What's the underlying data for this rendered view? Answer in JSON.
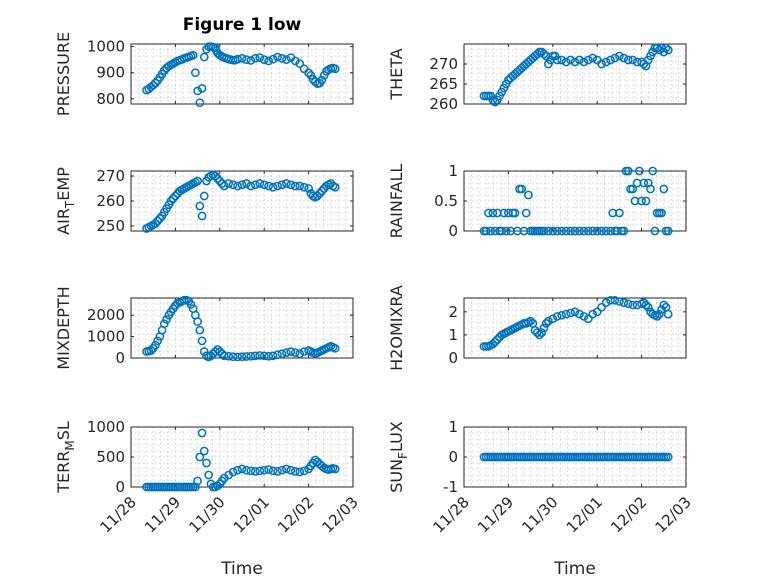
{
  "figure": {
    "title": "Figure 1 low",
    "marker_color": "#0072BD",
    "x_ticks": [
      "11/28",
      "11/29",
      "11/30",
      "12/01",
      "12/02",
      "12/03"
    ],
    "xlabel": "Time"
  },
  "chart_data": [
    {
      "type": "scatter",
      "title": "Figure 1 low",
      "ylabel": "PRESSURE",
      "xlim": [
        0,
        5
      ],
      "ylim": [
        780,
        1010
      ],
      "yticks": [
        800,
        900,
        1000
      ],
      "grid": true,
      "x": [
        0.35,
        0.4,
        0.45,
        0.5,
        0.55,
        0.6,
        0.65,
        0.7,
        0.75,
        0.8,
        0.85,
        0.9,
        0.95,
        1.0,
        1.05,
        1.1,
        1.15,
        1.2,
        1.25,
        1.3,
        1.35,
        1.4,
        1.45,
        1.5,
        1.55,
        1.6,
        1.65,
        1.7,
        1.75,
        1.8,
        1.85,
        1.9,
        1.92,
        1.95,
        2.0,
        2.05,
        2.1,
        2.15,
        2.2,
        2.25,
        2.3,
        2.35,
        2.4,
        2.5,
        2.6,
        2.7,
        2.8,
        2.9,
        3.0,
        3.1,
        3.2,
        3.3,
        3.4,
        3.5,
        3.6,
        3.7,
        3.8,
        3.9,
        4.0,
        4.05,
        4.1,
        4.15,
        4.2,
        4.25,
        4.3,
        4.35,
        4.4,
        4.45,
        4.5,
        4.55,
        4.6
      ],
      "y": [
        833,
        838,
        845,
        852,
        860,
        870,
        882,
        895,
        908,
        918,
        925,
        930,
        935,
        940,
        945,
        948,
        951,
        955,
        958,
        961,
        964,
        967,
        900,
        830,
        785,
        840,
        960,
        990,
        1000,
        1000,
        998,
        995,
        985,
        975,
        968,
        962,
        958,
        955,
        952,
        950,
        948,
        948,
        952,
        955,
        950,
        947,
        955,
        958,
        950,
        945,
        952,
        960,
        955,
        950,
        958,
        945,
        935,
        915,
        900,
        890,
        875,
        865,
        858,
        860,
        872,
        890,
        905,
        912,
        916,
        918,
        915
      ]
    },
    {
      "type": "scatter",
      "ylabel": "THETA",
      "xlim": [
        0,
        5
      ],
      "ylim": [
        260,
        275
      ],
      "yticks": [
        260,
        265,
        270
      ],
      "grid": true,
      "x": [
        0.45,
        0.5,
        0.55,
        0.6,
        0.65,
        0.7,
        0.75,
        0.8,
        0.85,
        0.9,
        0.95,
        1.0,
        1.05,
        1.1,
        1.15,
        1.2,
        1.25,
        1.3,
        1.35,
        1.4,
        1.45,
        1.5,
        1.55,
        1.6,
        1.65,
        1.7,
        1.75,
        1.8,
        1.85,
        1.9,
        1.95,
        2.0,
        2.05,
        2.1,
        2.2,
        2.3,
        2.4,
        2.5,
        2.6,
        2.7,
        2.8,
        2.9,
        3.0,
        3.1,
        3.2,
        3.3,
        3.4,
        3.5,
        3.6,
        3.7,
        3.8,
        3.9,
        4.0,
        4.05,
        4.1,
        4.15,
        4.2,
        4.25,
        4.3,
        4.35,
        4.4,
        4.45,
        4.5,
        4.55,
        4.6
      ],
      "y": [
        262,
        262,
        262,
        262,
        261,
        260.5,
        261,
        262,
        263,
        264,
        265,
        266,
        266.5,
        267,
        267.5,
        268,
        268.5,
        269,
        269.5,
        270,
        270.5,
        271,
        271.5,
        272,
        272.5,
        273,
        273,
        272.5,
        272,
        270,
        271,
        272,
        272,
        271,
        271,
        270.5,
        271,
        270.5,
        271,
        270.5,
        271,
        271.5,
        271,
        270,
        270.5,
        271,
        271.5,
        272,
        271.5,
        271,
        271,
        270.5,
        270.5,
        270,
        269.5,
        271,
        272,
        273,
        274,
        274,
        273.5,
        274,
        273,
        274,
        273.5
      ]
    },
    {
      "type": "scatter",
      "ylabel": "AIR_TEMP",
      "xlim": [
        0,
        5
      ],
      "ylim": [
        248,
        272
      ],
      "yticks": [
        250,
        260,
        270
      ],
      "grid": true,
      "x": [
        0.35,
        0.4,
        0.45,
        0.5,
        0.55,
        0.6,
        0.65,
        0.7,
        0.75,
        0.8,
        0.85,
        0.9,
        0.95,
        1.0,
        1.05,
        1.1,
        1.15,
        1.2,
        1.25,
        1.3,
        1.35,
        1.4,
        1.45,
        1.5,
        1.55,
        1.6,
        1.65,
        1.7,
        1.75,
        1.8,
        1.85,
        1.9,
        1.95,
        2.0,
        2.05,
        2.1,
        2.2,
        2.3,
        2.4,
        2.5,
        2.6,
        2.7,
        2.8,
        2.9,
        3.0,
        3.1,
        3.2,
        3.3,
        3.4,
        3.5,
        3.6,
        3.7,
        3.8,
        3.9,
        4.0,
        4.05,
        4.1,
        4.15,
        4.2,
        4.25,
        4.3,
        4.35,
        4.4,
        4.45,
        4.5,
        4.55,
        4.6
      ],
      "y": [
        249,
        249.5,
        250,
        250.5,
        251,
        252,
        253,
        254,
        255.5,
        257,
        258.5,
        260,
        261,
        262,
        263,
        264,
        264.5,
        265,
        265.5,
        266,
        266.5,
        267,
        267.5,
        268,
        258,
        254,
        262,
        268,
        269.5,
        270,
        270.5,
        270,
        269,
        268,
        267,
        266,
        267,
        266.5,
        266,
        266.5,
        267,
        266,
        266.5,
        267,
        266.5,
        266,
        265.5,
        266,
        266.5,
        267,
        266.5,
        266,
        266,
        265.5,
        265,
        263,
        262,
        261.5,
        262,
        263,
        264,
        265,
        266,
        266.5,
        267,
        266,
        265.5
      ]
    },
    {
      "type": "scatter",
      "ylabel": "RAINFALL",
      "xlim": [
        0,
        5
      ],
      "ylim": [
        0,
        1
      ],
      "yticks": [
        0,
        0.5,
        1
      ],
      "grid": true,
      "x": [
        0.45,
        0.5,
        0.55,
        0.6,
        0.65,
        0.7,
        0.75,
        0.8,
        0.85,
        0.9,
        0.95,
        1.0,
        1.05,
        1.1,
        1.15,
        1.2,
        1.25,
        1.3,
        1.35,
        1.4,
        1.45,
        1.5,
        1.55,
        1.6,
        1.65,
        1.7,
        1.75,
        1.8,
        1.9,
        2.0,
        2.1,
        2.2,
        2.3,
        2.4,
        2.5,
        2.6,
        2.7,
        2.8,
        2.9,
        3.0,
        3.1,
        3.2,
        3.3,
        3.35,
        3.4,
        3.45,
        3.5,
        3.55,
        3.6,
        3.65,
        3.7,
        3.75,
        3.8,
        3.85,
        3.9,
        3.95,
        4.0,
        4.05,
        4.1,
        4.15,
        4.2,
        4.25,
        4.3,
        4.35,
        4.4,
        4.45,
        4.5,
        4.55,
        4.6
      ],
      "y": [
        0,
        0,
        0.3,
        0,
        0.3,
        0,
        0.3,
        0,
        0,
        0.3,
        0,
        0.3,
        0,
        0.3,
        0.3,
        0,
        0.7,
        0.7,
        0,
        0.3,
        0.6,
        0,
        0,
        0,
        0,
        0,
        0,
        0,
        0,
        0,
        0,
        0,
        0,
        0,
        0,
        0,
        0,
        0,
        0,
        0,
        0,
        0,
        0,
        0.3,
        0,
        0,
        0.3,
        0,
        0,
        1,
        1,
        0.7,
        0.7,
        0.5,
        0.8,
        1,
        0.5,
        0.8,
        0.5,
        0.8,
        0.7,
        1,
        0,
        0.3,
        0.3,
        0.3,
        0.7,
        0,
        0
      ]
    },
    {
      "type": "scatter",
      "ylabel": "MIXDEPTH",
      "xlim": [
        0,
        5
      ],
      "ylim": [
        0,
        2800
      ],
      "yticks": [
        0,
        1000,
        2000
      ],
      "grid": true,
      "x": [
        0.35,
        0.4,
        0.45,
        0.5,
        0.55,
        0.6,
        0.65,
        0.7,
        0.75,
        0.8,
        0.85,
        0.9,
        0.95,
        1.0,
        1.05,
        1.1,
        1.15,
        1.2,
        1.25,
        1.3,
        1.35,
        1.4,
        1.45,
        1.5,
        1.55,
        1.6,
        1.65,
        1.7,
        1.75,
        1.8,
        1.85,
        1.9,
        1.95,
        2.0,
        2.05,
        2.1,
        2.2,
        2.3,
        2.4,
        2.5,
        2.6,
        2.7,
        2.8,
        2.9,
        3.0,
        3.1,
        3.2,
        3.3,
        3.4,
        3.5,
        3.6,
        3.7,
        3.8,
        3.9,
        4.0,
        4.05,
        4.1,
        4.15,
        4.2,
        4.25,
        4.3,
        4.35,
        4.4,
        4.45,
        4.5,
        4.55,
        4.6
      ],
      "y": [
        300,
        320,
        350,
        450,
        600,
        800,
        1000,
        1300,
        1600,
        1800,
        2000,
        2150,
        2300,
        2450,
        2550,
        2600,
        2650,
        2700,
        2700,
        2650,
        2500,
        2300,
        2000,
        1700,
        1300,
        800,
        300,
        100,
        50,
        100,
        200,
        300,
        400,
        300,
        200,
        100,
        80,
        60,
        50,
        60,
        70,
        80,
        100,
        120,
        100,
        80,
        100,
        150,
        200,
        250,
        300,
        250,
        200,
        300,
        350,
        300,
        250,
        200,
        250,
        300,
        350,
        400,
        450,
        500,
        550,
        500,
        450
      ]
    },
    {
      "type": "scatter",
      "ylabel": "H2OMIXRA",
      "xlim": [
        0,
        5
      ],
      "ylim": [
        0,
        2.6
      ],
      "yticks": [
        0,
        1,
        2
      ],
      "grid": true,
      "x": [
        0.45,
        0.5,
        0.55,
        0.6,
        0.65,
        0.7,
        0.75,
        0.8,
        0.85,
        0.9,
        0.95,
        1.0,
        1.05,
        1.1,
        1.15,
        1.2,
        1.25,
        1.3,
        1.35,
        1.4,
        1.45,
        1.5,
        1.55,
        1.6,
        1.65,
        1.7,
        1.75,
        1.8,
        1.85,
        1.9,
        2.0,
        2.1,
        2.2,
        2.3,
        2.4,
        2.5,
        2.6,
        2.7,
        2.8,
        2.9,
        3.0,
        3.1,
        3.2,
        3.3,
        3.4,
        3.5,
        3.6,
        3.7,
        3.8,
        3.9,
        4.0,
        4.05,
        4.1,
        4.15,
        4.2,
        4.25,
        4.3,
        4.35,
        4.4,
        4.45,
        4.5,
        4.55,
        4.6
      ],
      "y": [
        0.5,
        0.5,
        0.5,
        0.55,
        0.6,
        0.7,
        0.8,
        0.9,
        1.0,
        1.05,
        1.1,
        1.15,
        1.2,
        1.25,
        1.3,
        1.35,
        1.4,
        1.45,
        1.5,
        1.5,
        1.55,
        1.6,
        1.5,
        1.2,
        1.1,
        1.0,
        1.1,
        1.3,
        1.5,
        1.6,
        1.7,
        1.8,
        1.85,
        1.9,
        1.95,
        2.0,
        1.9,
        1.8,
        1.7,
        1.9,
        2.0,
        2.2,
        2.4,
        2.5,
        2.5,
        2.45,
        2.4,
        2.35,
        2.3,
        2.3,
        2.35,
        2.4,
        2.3,
        2.2,
        2.0,
        1.9,
        1.85,
        1.8,
        1.9,
        2.1,
        2.3,
        2.2,
        1.9
      ]
    },
    {
      "type": "scatter",
      "ylabel": "TERR_MSL",
      "xlim": [
        0,
        5
      ],
      "ylim": [
        0,
        1000
      ],
      "yticks": [
        0,
        500,
        1000
      ],
      "grid": true,
      "x": [
        0.35,
        0.4,
        0.45,
        0.5,
        0.55,
        0.6,
        0.65,
        0.7,
        0.75,
        0.8,
        0.85,
        0.9,
        0.95,
        1.0,
        1.05,
        1.1,
        1.15,
        1.2,
        1.25,
        1.3,
        1.35,
        1.4,
        1.45,
        1.5,
        1.55,
        1.6,
        1.65,
        1.7,
        1.75,
        1.8,
        1.85,
        1.9,
        1.95,
        2.0,
        2.05,
        2.1,
        2.2,
        2.3,
        2.4,
        2.5,
        2.6,
        2.7,
        2.8,
        2.9,
        3.0,
        3.1,
        3.2,
        3.3,
        3.4,
        3.5,
        3.6,
        3.7,
        3.8,
        3.9,
        4.0,
        4.05,
        4.1,
        4.15,
        4.2,
        4.25,
        4.3,
        4.35,
        4.4,
        4.45,
        4.5,
        4.55,
        4.6
      ],
      "y": [
        0,
        0,
        0,
        0,
        0,
        0,
        0,
        0,
        0,
        0,
        0,
        0,
        0,
        0,
        0,
        0,
        0,
        0,
        0,
        0,
        0,
        0,
        0,
        100,
        500,
        900,
        600,
        400,
        200,
        50,
        0,
        0,
        20,
        50,
        100,
        150,
        200,
        250,
        280,
        300,
        280,
        270,
        260,
        270,
        280,
        290,
        270,
        260,
        280,
        300,
        280,
        260,
        250,
        270,
        300,
        350,
        400,
        450,
        420,
        380,
        350,
        320,
        300,
        290,
        300,
        310,
        300
      ]
    },
    {
      "type": "scatter",
      "ylabel": "SUN_FLUX",
      "xlim": [
        0,
        5
      ],
      "ylim": [
        -1,
        1
      ],
      "yticks": [
        -1,
        0,
        1
      ],
      "grid": true,
      "x": [
        0.45,
        0.5,
        0.55,
        0.6,
        0.65,
        0.7,
        0.75,
        0.8,
        0.85,
        0.9,
        0.95,
        1.0,
        1.05,
        1.1,
        1.15,
        1.2,
        1.25,
        1.3,
        1.35,
        1.4,
        1.45,
        1.5,
        1.55,
        1.6,
        1.65,
        1.7,
        1.75,
        1.8,
        1.85,
        1.9,
        1.95,
        2.0,
        2.05,
        2.1,
        2.15,
        2.2,
        2.25,
        2.3,
        2.35,
        2.4,
        2.45,
        2.5,
        2.55,
        2.6,
        2.65,
        2.7,
        2.75,
        2.8,
        2.85,
        2.9,
        2.95,
        3.0,
        3.05,
        3.1,
        3.15,
        3.2,
        3.25,
        3.3,
        3.35,
        3.4,
        3.45,
        3.5,
        3.55,
        3.6,
        3.65,
        3.7,
        3.75,
        3.8,
        3.85,
        3.9,
        3.95,
        4.0,
        4.05,
        4.1,
        4.15,
        4.2,
        4.25,
        4.3,
        4.35,
        4.4,
        4.45,
        4.5,
        4.55,
        4.6
      ],
      "y": [
        0,
        0,
        0,
        0,
        0,
        0,
        0,
        0,
        0,
        0,
        0,
        0,
        0,
        0,
        0,
        0,
        0,
        0,
        0,
        0,
        0,
        0,
        0,
        0,
        0,
        0,
        0,
        0,
        0,
        0,
        0,
        0,
        0,
        0,
        0,
        0,
        0,
        0,
        0,
        0,
        0,
        0,
        0,
        0,
        0,
        0,
        0,
        0,
        0,
        0,
        0,
        0,
        0,
        0,
        0,
        0,
        0,
        0,
        0,
        0,
        0,
        0,
        0,
        0,
        0,
        0,
        0,
        0,
        0,
        0,
        0,
        0,
        0,
        0,
        0,
        0,
        0,
        0,
        0,
        0,
        0,
        0,
        0,
        0
      ]
    }
  ]
}
